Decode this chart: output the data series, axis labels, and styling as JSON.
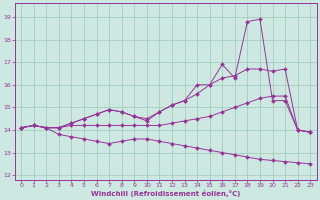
{
  "xlabel": "Windchill (Refroidissement éolien,°C)",
  "xlim": [
    -0.5,
    23.5
  ],
  "ylim": [
    11.8,
    19.6
  ],
  "yticks": [
    12,
    13,
    14,
    15,
    16,
    17,
    18,
    19
  ],
  "xticks": [
    0,
    1,
    2,
    3,
    4,
    5,
    6,
    7,
    8,
    9,
    10,
    11,
    12,
    13,
    14,
    15,
    16,
    17,
    18,
    19,
    20,
    21,
    22,
    23
  ],
  "bg_color": "#cce8e0",
  "line_color": "#993399",
  "grid_color": "#9ec8b8",
  "series": [
    {
      "x": [
        0,
        1,
        2,
        3,
        4,
        5,
        6,
        7,
        8,
        9,
        10,
        11,
        12,
        13,
        14,
        15,
        16,
        17,
        18,
        19,
        20,
        21,
        22,
        23
      ],
      "y": [
        14.1,
        14.2,
        14.1,
        14.1,
        14.2,
        14.2,
        14.2,
        14.2,
        14.2,
        14.2,
        14.2,
        14.2,
        14.3,
        14.4,
        14.5,
        14.6,
        14.8,
        15.0,
        15.2,
        15.4,
        15.5,
        15.5,
        14.0,
        13.9
      ]
    },
    {
      "x": [
        0,
        1,
        2,
        3,
        4,
        5,
        6,
        7,
        8,
        9,
        10,
        11,
        12,
        13,
        14,
        15,
        16,
        17,
        18,
        19,
        20,
        21,
        22,
        23
      ],
      "y": [
        14.1,
        14.2,
        14.1,
        14.1,
        14.3,
        14.5,
        14.7,
        14.9,
        14.8,
        14.6,
        14.5,
        14.8,
        15.1,
        15.3,
        15.6,
        16.0,
        16.3,
        16.4,
        16.7,
        16.7,
        16.6,
        16.7,
        14.0,
        13.9
      ]
    },
    {
      "x": [
        0,
        1,
        2,
        3,
        4,
        5,
        6,
        7,
        8,
        9,
        10,
        11,
        12,
        13,
        14,
        15,
        16,
        17,
        18,
        19,
        20,
        21,
        22,
        23
      ],
      "y": [
        14.1,
        14.2,
        14.1,
        14.1,
        14.3,
        14.5,
        14.7,
        14.9,
        14.8,
        14.6,
        14.4,
        14.8,
        15.1,
        15.3,
        16.0,
        16.0,
        16.9,
        16.3,
        18.8,
        18.9,
        15.3,
        15.3,
        14.0,
        13.9
      ]
    },
    {
      "x": [
        0,
        1,
        2,
        3,
        4,
        5,
        6,
        7,
        8,
        9,
        10,
        11,
        12,
        13,
        14,
        15,
        16,
        17,
        18,
        19,
        20,
        21,
        22,
        23
      ],
      "y": [
        14.1,
        14.2,
        14.1,
        13.8,
        13.7,
        13.6,
        13.5,
        13.4,
        13.5,
        13.6,
        13.6,
        13.5,
        13.4,
        13.3,
        13.2,
        13.1,
        13.0,
        12.9,
        12.8,
        12.7,
        12.65,
        12.6,
        12.55,
        12.5
      ]
    }
  ]
}
